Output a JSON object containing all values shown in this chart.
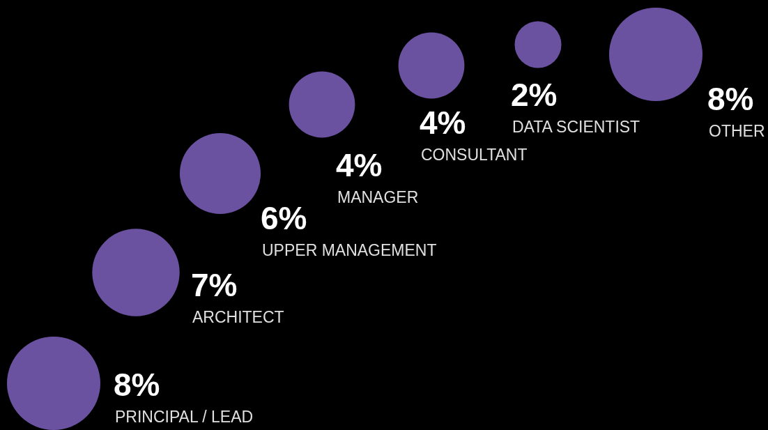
{
  "chart_data": {
    "type": "other",
    "categories": [
      "PRINCIPAL / LEAD",
      "ARCHITECT",
      "UPPER MANAGEMENT",
      "MANAGER",
      "CONSULTANT",
      "DATA SCIENTIST",
      "OTHER"
    ],
    "values": [
      8,
      7,
      6,
      4,
      4,
      2,
      8
    ],
    "value_labels": [
      "8%",
      "7%",
      "6%",
      "4%",
      "4%",
      "2%",
      "8%"
    ],
    "color": "#6b52a1"
  }
}
